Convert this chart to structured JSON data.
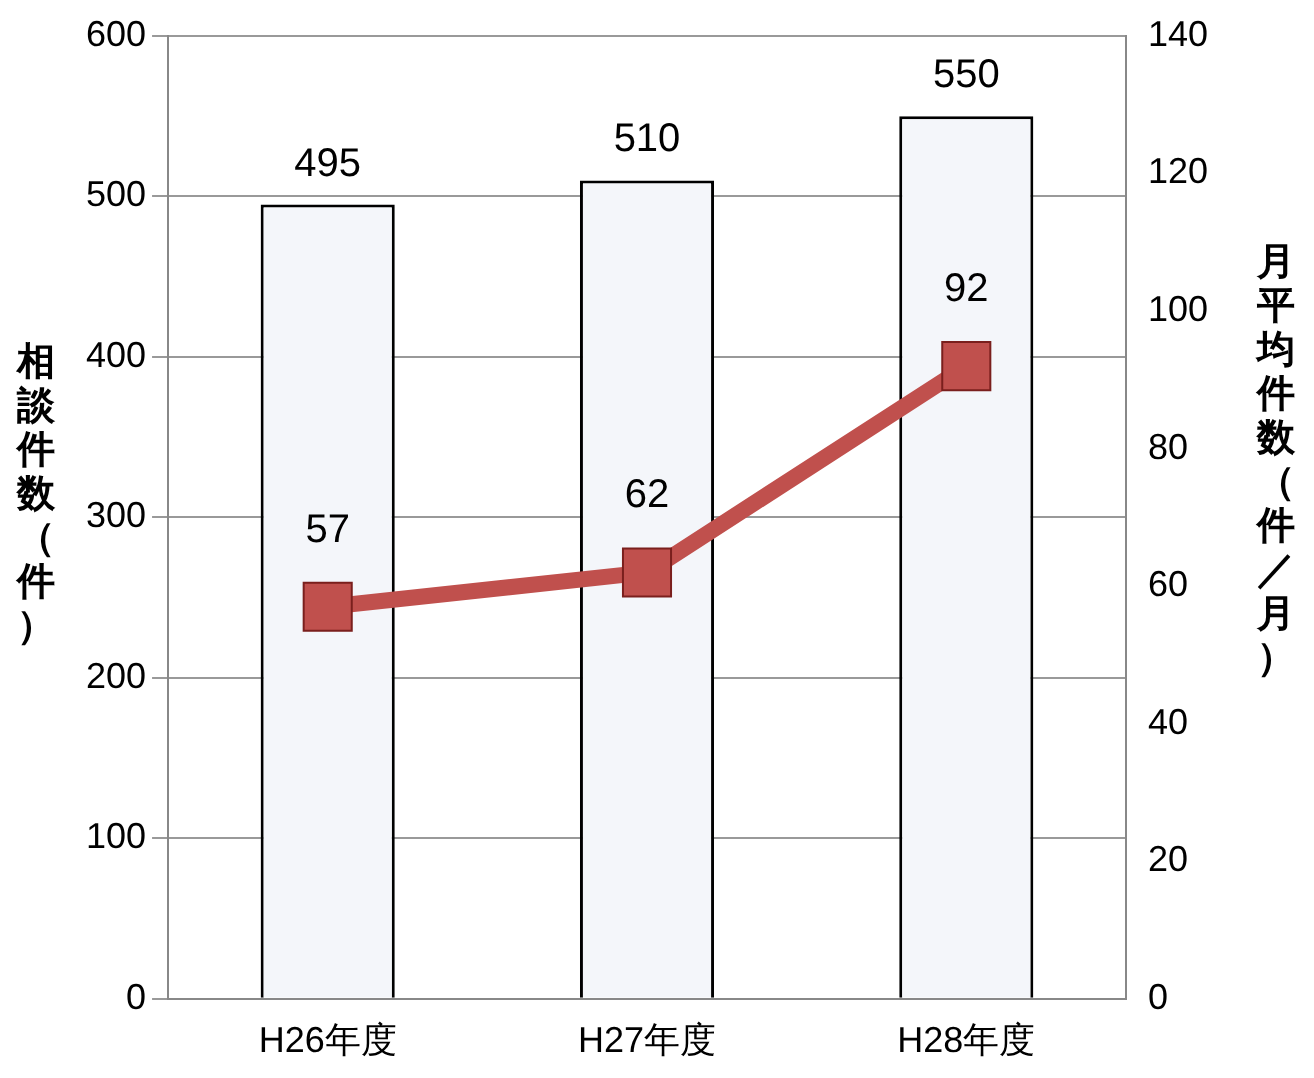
{
  "chart_data": {
    "type": "bar",
    "categories": [
      "H26年度",
      "H27年度",
      "H28年度"
    ],
    "ylabel": "相談件数（件）",
    "y2label": "月平均件数（件／月）",
    "series": [
      {
        "color": "#f4f6fa",
        "values": [
          495,
          510,
          550
        ]
      },
      {
        "type": "line",
        "axis": "y2",
        "color": "#c0504d",
        "values": [
          57,
          62,
          92
        ]
      }
    ],
    "ylim": [
      0,
      600
    ],
    "yticks": [
      0,
      100,
      200,
      300,
      400,
      500,
      600
    ],
    "y2lim": [
      0,
      140
    ],
    "y2ticks": [
      0,
      20,
      40,
      60,
      80,
      100,
      120,
      140
    ],
    "grid": "y",
    "legend": false,
    "marker": "square",
    "data_labels": true
  }
}
